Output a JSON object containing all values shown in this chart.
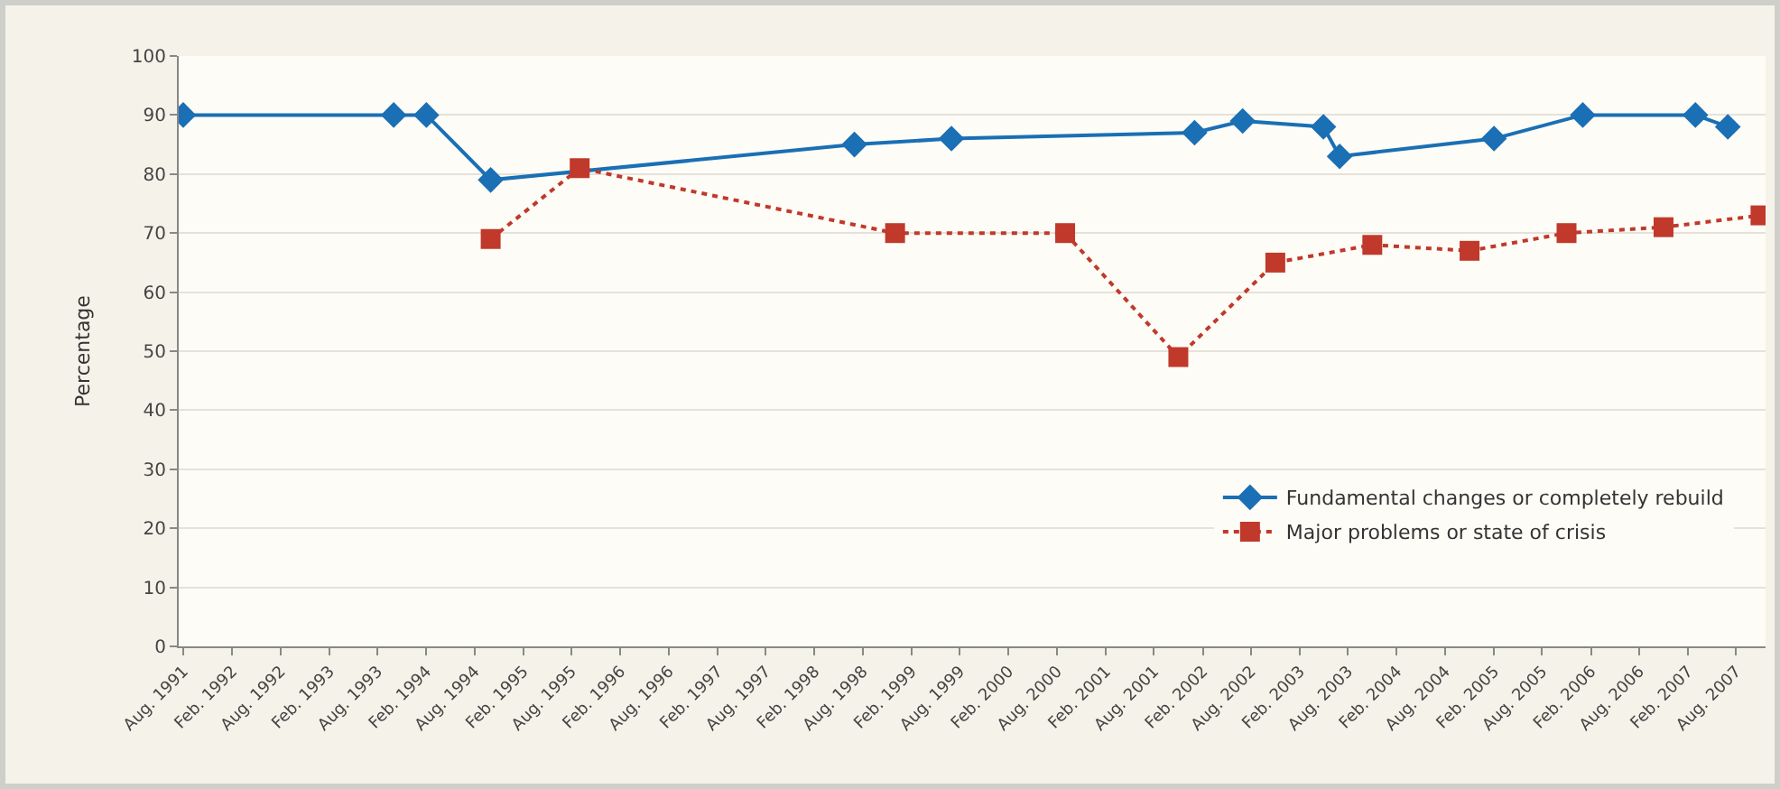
{
  "chart_data": {
    "type": "line",
    "ylabel": "Percentage",
    "xlim": [
      "1991-07-15",
      "2007-11-20"
    ],
    "ylim": [
      0,
      100
    ],
    "yticks": [
      0,
      10,
      20,
      30,
      40,
      50,
      60,
      70,
      80,
      90,
      100
    ],
    "xticks": [
      {
        "value": "1991-08-01",
        "label": "Aug. 1991"
      },
      {
        "value": "1992-02-01",
        "label": "Feb. 1992"
      },
      {
        "value": "1992-08-01",
        "label": "Aug. 1992"
      },
      {
        "value": "1993-02-01",
        "label": "Feb. 1993"
      },
      {
        "value": "1993-08-01",
        "label": "Aug. 1993"
      },
      {
        "value": "1994-02-01",
        "label": "Feb. 1994"
      },
      {
        "value": "1994-08-01",
        "label": "Aug. 1994"
      },
      {
        "value": "1995-02-01",
        "label": "Feb. 1995"
      },
      {
        "value": "1995-08-01",
        "label": "Aug. 1995"
      },
      {
        "value": "1996-02-01",
        "label": "Feb. 1996"
      },
      {
        "value": "1996-08-01",
        "label": "Aug. 1996"
      },
      {
        "value": "1997-02-01",
        "label": "Feb. 1997"
      },
      {
        "value": "1997-08-01",
        "label": "Aug. 1997"
      },
      {
        "value": "1998-02-01",
        "label": "Feb. 1998"
      },
      {
        "value": "1998-08-01",
        "label": "Aug. 1998"
      },
      {
        "value": "1999-02-01",
        "label": "Feb. 1999"
      },
      {
        "value": "1999-08-01",
        "label": "Aug. 1999"
      },
      {
        "value": "2000-02-01",
        "label": "Feb. 2000"
      },
      {
        "value": "2000-08-01",
        "label": "Aug. 2000"
      },
      {
        "value": "2001-02-01",
        "label": "Feb. 2001"
      },
      {
        "value": "2001-08-01",
        "label": "Aug. 2001"
      },
      {
        "value": "2002-02-01",
        "label": "Feb. 2002"
      },
      {
        "value": "2002-08-01",
        "label": "Aug. 2002"
      },
      {
        "value": "2003-02-01",
        "label": "Feb. 2003"
      },
      {
        "value": "2003-08-01",
        "label": "Aug. 2003"
      },
      {
        "value": "2004-02-01",
        "label": "Feb. 2004"
      },
      {
        "value": "2004-08-01",
        "label": "Aug. 2004"
      },
      {
        "value": "2005-02-01",
        "label": "Feb. 2005"
      },
      {
        "value": "2005-08-01",
        "label": "Aug. 2005"
      },
      {
        "value": "2006-02-01",
        "label": "Feb. 2006"
      },
      {
        "value": "2006-08-01",
        "label": "Aug. 2006"
      },
      {
        "value": "2007-02-01",
        "label": "Feb. 2007"
      },
      {
        "value": "2007-08-01",
        "label": "Aug. 2007"
      }
    ],
    "grid": "y",
    "legend": "bottom right",
    "series": [
      {
        "name": "Fundamental changes or completely rebuild",
        "color": "#1a6fb5",
        "marker": "diamond",
        "line_style": "solid",
        "x": [
          "1991-08",
          "1993-10",
          "1994-02",
          "1994-10",
          "1998-07",
          "1999-07",
          "2002-01",
          "2002-07",
          "2003-05",
          "2003-07",
          "2005-02",
          "2006-01",
          "2007-03",
          "2007-07"
        ],
        "values": [
          90,
          90,
          90,
          79,
          85,
          86,
          87,
          89,
          88,
          83,
          86,
          90,
          90,
          88
        ]
      },
      {
        "name": "Major problems or state of crisis",
        "color": "#c0392b",
        "marker": "square",
        "line_style": "dotted",
        "x": [
          "1994-10",
          "1995-09",
          "1998-12",
          "2000-09",
          "2001-11",
          "2002-11",
          "2003-11",
          "2004-11",
          "2005-11",
          "2006-11",
          "2007-11"
        ],
        "values": [
          69,
          81,
          70,
          70,
          49,
          65,
          68,
          67,
          70,
          71,
          73
        ]
      }
    ]
  }
}
